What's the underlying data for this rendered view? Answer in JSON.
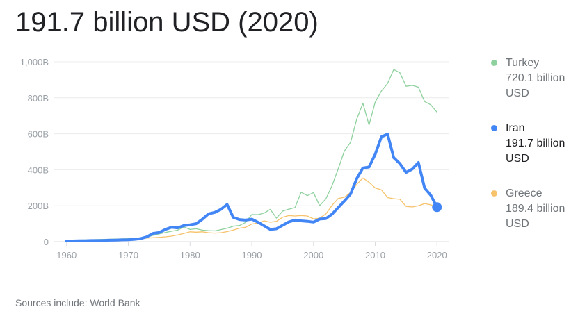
{
  "headline": "191.7 billion USD (2020)",
  "footer": "Sources include: World Bank",
  "chart_data": {
    "type": "line",
    "title": "",
    "xlabel": "",
    "ylabel": "",
    "xlim": [
      1958,
      2022
    ],
    "ylim": [
      0,
      1000
    ],
    "x_ticks": [
      1960,
      1970,
      1980,
      1990,
      2000,
      2010,
      2020
    ],
    "x_tick_labels": [
      "1960",
      "1970",
      "1980",
      "1990",
      "2000",
      "2010",
      "2020"
    ],
    "y_ticks": [
      0,
      200,
      400,
      600,
      800,
      1000
    ],
    "y_tick_labels": [
      "0",
      "200B",
      "400B",
      "600B",
      "800B",
      "1,000B"
    ],
    "grid": true,
    "legend_position": "right",
    "highlighted_series": "Iran",
    "series": [
      {
        "name": "Turkey",
        "value_label": "720.1 billion USD",
        "color": "#8fd19e",
        "x": [
          1960,
          1961,
          1962,
          1963,
          1964,
          1965,
          1966,
          1967,
          1968,
          1969,
          1970,
          1971,
          1972,
          1973,
          1974,
          1975,
          1976,
          1977,
          1978,
          1979,
          1980,
          1981,
          1982,
          1983,
          1984,
          1985,
          1986,
          1987,
          1988,
          1989,
          1990,
          1991,
          1992,
          1993,
          1994,
          1995,
          1996,
          1997,
          1998,
          1999,
          2000,
          2001,
          2002,
          2003,
          2004,
          2005,
          2006,
          2007,
          2008,
          2009,
          2010,
          2011,
          2012,
          2013,
          2014,
          2015,
          2016,
          2017,
          2018,
          2019,
          2020
        ],
        "values": [
          9,
          8,
          9,
          10,
          11,
          12,
          13,
          14,
          15,
          16,
          17,
          16,
          20,
          25,
          35,
          43,
          51,
          58,
          64,
          82,
          68,
          72,
          64,
          61,
          60,
          67,
          75,
          86,
          90,
          107,
          151,
          150,
          159,
          180,
          131,
          170,
          181,
          189,
          275,
          256,
          273,
          200,
          238,
          311,
          405,
          504,
          552,
          681,
          770,
          649,
          777,
          838,
          880,
          957,
          939,
          864,
          869,
          859,
          779,
          761,
          720
        ]
      },
      {
        "name": "Iran",
        "value_label": "191.7 billion USD",
        "color": "#4285f4",
        "x": [
          1960,
          1961,
          1962,
          1963,
          1964,
          1965,
          1966,
          1967,
          1968,
          1969,
          1970,
          1971,
          1972,
          1973,
          1974,
          1975,
          1976,
          1977,
          1978,
          1979,
          1980,
          1981,
          1982,
          1983,
          1984,
          1985,
          1986,
          1987,
          1988,
          1989,
          1990,
          1991,
          1992,
          1993,
          1994,
          1995,
          1996,
          1997,
          1998,
          1999,
          2000,
          2001,
          2002,
          2003,
          2004,
          2005,
          2006,
          2007,
          2008,
          2009,
          2010,
          2011,
          2012,
          2013,
          2014,
          2015,
          2016,
          2017,
          2018,
          2019,
          2020
        ],
        "values": [
          4,
          4,
          5,
          5,
          6,
          6,
          7,
          8,
          9,
          10,
          11,
          13,
          17,
          27,
          46,
          51,
          68,
          80,
          77,
          90,
          94,
          100,
          125,
          155,
          163,
          180,
          207,
          135,
          123,
          120,
          125,
          108,
          88,
          68,
          72,
          91,
          110,
          120,
          116,
          113,
          109,
          126,
          128,
          153,
          190,
          226,
          265,
          350,
          410,
          415,
          486,
          583,
          598,
          467,
          434,
          385,
          404,
          440,
          298,
          258,
          192
        ]
      },
      {
        "name": "Greece",
        "value_label": "189.4 billion USD",
        "color": "#f6c26b",
        "x": [
          1960,
          1961,
          1962,
          1963,
          1964,
          1965,
          1966,
          1967,
          1968,
          1969,
          1970,
          1971,
          1972,
          1973,
          1974,
          1975,
          1976,
          1977,
          1978,
          1979,
          1980,
          1981,
          1982,
          1983,
          1984,
          1985,
          1986,
          1987,
          1988,
          1989,
          1990,
          1991,
          1992,
          1993,
          1994,
          1995,
          1996,
          1997,
          1998,
          1999,
          2000,
          2001,
          2002,
          2003,
          2004,
          2005,
          2006,
          2007,
          2008,
          2009,
          2010,
          2011,
          2012,
          2013,
          2014,
          2015,
          2016,
          2017,
          2018,
          2019,
          2020
        ],
        "values": [
          5,
          5,
          5,
          6,
          6,
          7,
          8,
          8,
          9,
          10,
          12,
          13,
          15,
          20,
          22,
          24,
          27,
          31,
          38,
          46,
          55,
          53,
          55,
          50,
          48,
          50,
          56,
          65,
          75,
          80,
          98,
          104,
          116,
          108,
          113,
          136,
          145,
          143,
          145,
          143,
          127,
          131,
          154,
          202,
          240,
          247,
          273,
          318,
          354,
          330,
          299,
          288,
          245,
          239,
          236,
          196,
          193,
          200,
          212,
          205,
          189
        ]
      }
    ]
  }
}
